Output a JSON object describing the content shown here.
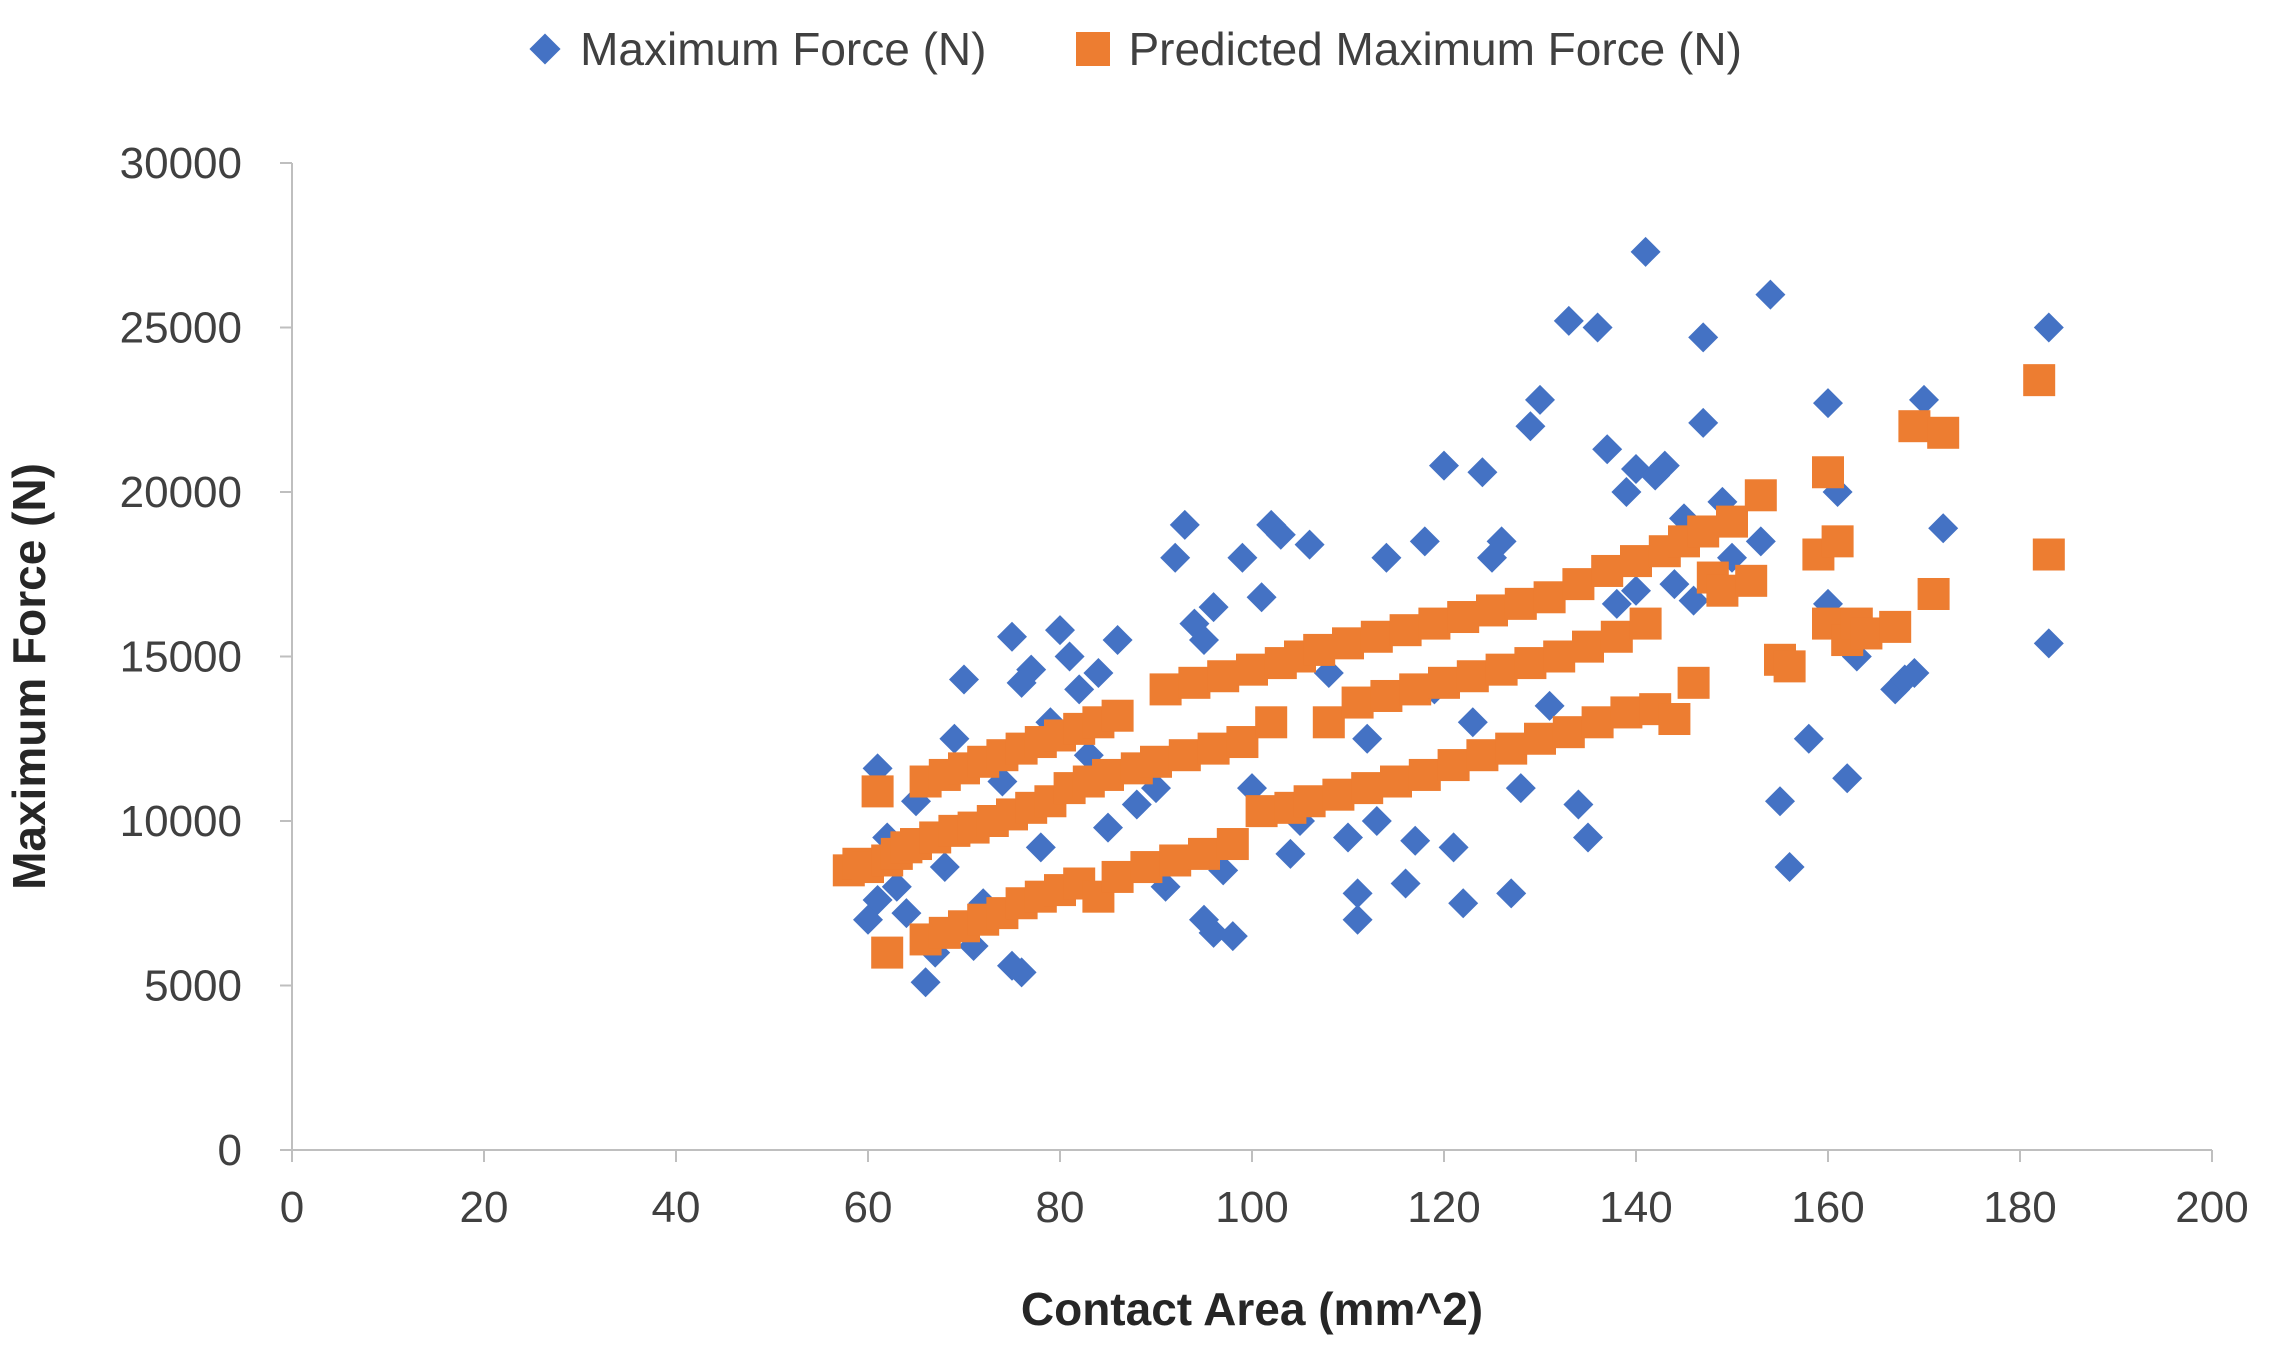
{
  "chart_data": {
    "type": "scatter",
    "title": "",
    "xlabel": "Contact Area (mm^2)",
    "ylabel": "Maximum Force (N)",
    "xlim": [
      0,
      200
    ],
    "ylim": [
      0,
      30000
    ],
    "x_ticks": [
      "0",
      "20",
      "40",
      "60",
      "80",
      "100",
      "120",
      "140",
      "160",
      "180",
      "200"
    ],
    "y_ticks": [
      "0",
      "5000",
      "10000",
      "15000",
      "20000",
      "25000",
      "30000"
    ],
    "grid": false,
    "legend_position": "top-center",
    "series": [
      {
        "name": "Maximum Force (N)",
        "marker": "diamond",
        "color": "#4472c4",
        "points": [
          [
            60,
            7000
          ],
          [
            61,
            7600
          ],
          [
            61,
            11600
          ],
          [
            62,
            9500
          ],
          [
            63,
            8000
          ],
          [
            64,
            7200
          ],
          [
            65,
            10600
          ],
          [
            66,
            5100
          ],
          [
            67,
            6000
          ],
          [
            68,
            8600
          ],
          [
            69,
            12500
          ],
          [
            70,
            14300
          ],
          [
            71,
            6200
          ],
          [
            72,
            7500
          ],
          [
            73,
            10000
          ],
          [
            74,
            11200
          ],
          [
            75,
            15600
          ],
          [
            75,
            5600
          ],
          [
            76,
            5400
          ],
          [
            76,
            14200
          ],
          [
            77,
            14600
          ],
          [
            78,
            9200
          ],
          [
            79,
            13000
          ],
          [
            80,
            15800
          ],
          [
            81,
            15000
          ],
          [
            82,
            14000
          ],
          [
            83,
            12000
          ],
          [
            84,
            14500
          ],
          [
            85,
            9800
          ],
          [
            86,
            15500
          ],
          [
            88,
            10500
          ],
          [
            90,
            11000
          ],
          [
            91,
            8000
          ],
          [
            92,
            18000
          ],
          [
            93,
            19000
          ],
          [
            94,
            16000
          ],
          [
            95,
            15500
          ],
          [
            95,
            7000
          ],
          [
            96,
            16500
          ],
          [
            96,
            6600
          ],
          [
            97,
            8500
          ],
          [
            98,
            6500
          ],
          [
            99,
            18000
          ],
          [
            100,
            11000
          ],
          [
            101,
            16800
          ],
          [
            102,
            19000
          ],
          [
            103,
            18700
          ],
          [
            104,
            9000
          ],
          [
            105,
            10000
          ],
          [
            106,
            18400
          ],
          [
            108,
            14500
          ],
          [
            110,
            9500
          ],
          [
            111,
            7000
          ],
          [
            111,
            7800
          ],
          [
            112,
            12500
          ],
          [
            113,
            10000
          ],
          [
            114,
            18000
          ],
          [
            116,
            8100
          ],
          [
            117,
            9400
          ],
          [
            118,
            18500
          ],
          [
            119,
            14000
          ],
          [
            120,
            20800
          ],
          [
            121,
            9200
          ],
          [
            122,
            7500
          ],
          [
            123,
            13000
          ],
          [
            124,
            20600
          ],
          [
            125,
            18000
          ],
          [
            126,
            18500
          ],
          [
            127,
            7800
          ],
          [
            128,
            11000
          ],
          [
            129,
            22000
          ],
          [
            130,
            22800
          ],
          [
            131,
            13500
          ],
          [
            133,
            25200
          ],
          [
            134,
            10500
          ],
          [
            135,
            9500
          ],
          [
            136,
            25000
          ],
          [
            137,
            21300
          ],
          [
            138,
            16600
          ],
          [
            139,
            20000
          ],
          [
            140,
            17000
          ],
          [
            140,
            20700
          ],
          [
            141,
            27300
          ],
          [
            142,
            20500
          ],
          [
            143,
            20800
          ],
          [
            144,
            17200
          ],
          [
            145,
            19200
          ],
          [
            146,
            16700
          ],
          [
            147,
            24700
          ],
          [
            147,
            22100
          ],
          [
            149,
            19700
          ],
          [
            150,
            18000
          ],
          [
            153,
            18500
          ],
          [
            154,
            26000
          ],
          [
            155,
            10600
          ],
          [
            156,
            8600
          ],
          [
            158,
            12500
          ],
          [
            160,
            22700
          ],
          [
            160,
            16600
          ],
          [
            161,
            20000
          ],
          [
            162,
            11300
          ],
          [
            163,
            15000
          ],
          [
            167,
            14000
          ],
          [
            168,
            14300
          ],
          [
            169,
            14500
          ],
          [
            170,
            22800
          ],
          [
            172,
            18900
          ],
          [
            183,
            15400
          ],
          [
            183,
            25000
          ]
        ]
      },
      {
        "name": "Predicted Maximum Force (N)",
        "marker": "square",
        "color": "#ed7d31",
        "points": [
          [
            58,
            8500
          ],
          [
            59,
            8700
          ],
          [
            60,
            8600
          ],
          [
            61,
            10900
          ],
          [
            62,
            6000
          ],
          [
            62,
            8800
          ],
          [
            63,
            9000
          ],
          [
            64,
            9200
          ],
          [
            65,
            9300
          ],
          [
            66,
            11200
          ],
          [
            66,
            6400
          ],
          [
            67,
            9500
          ],
          [
            68,
            11400
          ],
          [
            68,
            6600
          ],
          [
            69,
            9700
          ],
          [
            70,
            11600
          ],
          [
            70,
            6800
          ],
          [
            71,
            9800
          ],
          [
            72,
            11800
          ],
          [
            72,
            7000
          ],
          [
            73,
            10000
          ],
          [
            74,
            12000
          ],
          [
            74,
            7200
          ],
          [
            75,
            10200
          ],
          [
            76,
            12200
          ],
          [
            76,
            7500
          ],
          [
            77,
            10400
          ],
          [
            78,
            12400
          ],
          [
            78,
            7700
          ],
          [
            79,
            10600
          ],
          [
            80,
            12600
          ],
          [
            80,
            7900
          ],
          [
            81,
            11000
          ],
          [
            82,
            12800
          ],
          [
            82,
            8100
          ],
          [
            83,
            11200
          ],
          [
            84,
            13000
          ],
          [
            84,
            7700
          ],
          [
            85,
            11400
          ],
          [
            86,
            13200
          ],
          [
            86,
            8300
          ],
          [
            88,
            11600
          ],
          [
            89,
            8600
          ],
          [
            90,
            11800
          ],
          [
            91,
            14000
          ],
          [
            92,
            8800
          ],
          [
            93,
            12000
          ],
          [
            94,
            14200
          ],
          [
            95,
            9000
          ],
          [
            96,
            12200
          ],
          [
            97,
            14400
          ],
          [
            98,
            9300
          ],
          [
            99,
            12400
          ],
          [
            100,
            14600
          ],
          [
            101,
            10300
          ],
          [
            102,
            13000
          ],
          [
            103,
            14800
          ],
          [
            104,
            10400
          ],
          [
            105,
            15000
          ],
          [
            106,
            10600
          ],
          [
            107,
            15200
          ],
          [
            108,
            13000
          ],
          [
            109,
            10800
          ],
          [
            110,
            15400
          ],
          [
            111,
            13600
          ],
          [
            112,
            11000
          ],
          [
            113,
            15600
          ],
          [
            114,
            13800
          ],
          [
            115,
            11200
          ],
          [
            116,
            15800
          ],
          [
            117,
            14000
          ],
          [
            118,
            11400
          ],
          [
            119,
            16000
          ],
          [
            120,
            14200
          ],
          [
            121,
            11700
          ],
          [
            122,
            16200
          ],
          [
            123,
            14400
          ],
          [
            124,
            12000
          ],
          [
            125,
            16400
          ],
          [
            126,
            14600
          ],
          [
            127,
            12200
          ],
          [
            128,
            16600
          ],
          [
            129,
            14800
          ],
          [
            130,
            12500
          ],
          [
            131,
            16800
          ],
          [
            132,
            15000
          ],
          [
            133,
            12700
          ],
          [
            134,
            17200
          ],
          [
            135,
            15300
          ],
          [
            136,
            13000
          ],
          [
            137,
            17600
          ],
          [
            138,
            15600
          ],
          [
            139,
            13300
          ],
          [
            140,
            17900
          ],
          [
            141,
            16000
          ],
          [
            142,
            13400
          ],
          [
            143,
            18200
          ],
          [
            144,
            13100
          ],
          [
            145,
            18500
          ],
          [
            146,
            14200
          ],
          [
            147,
            18800
          ],
          [
            148,
            17400
          ],
          [
            149,
            17000
          ],
          [
            150,
            19100
          ],
          [
            152,
            17300
          ],
          [
            153,
            19900
          ],
          [
            155,
            14900
          ],
          [
            156,
            14700
          ],
          [
            159,
            18100
          ],
          [
            160,
            20600
          ],
          [
            160,
            16000
          ],
          [
            161,
            18500
          ],
          [
            162,
            15500
          ],
          [
            163,
            16000
          ],
          [
            164,
            15700
          ],
          [
            167,
            15900
          ],
          [
            169,
            22000
          ],
          [
            171,
            16900
          ],
          [
            172,
            21800
          ],
          [
            182,
            23400
          ],
          [
            183,
            18100
          ]
        ]
      }
    ]
  }
}
